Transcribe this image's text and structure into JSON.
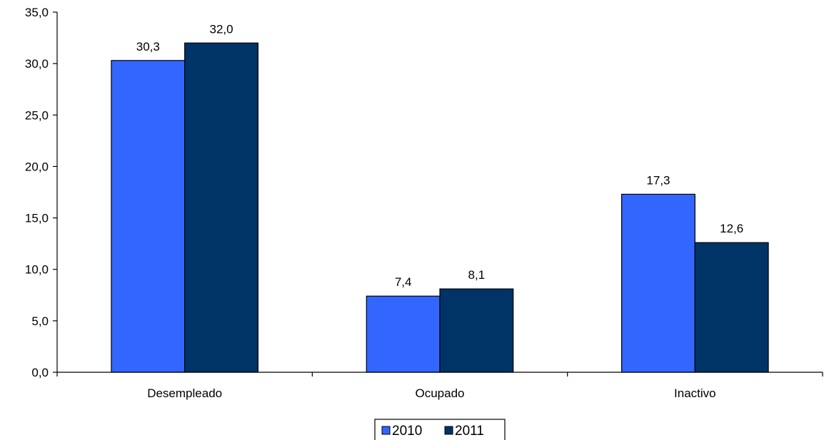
{
  "chart_data": {
    "type": "bar",
    "title": "",
    "xlabel": "",
    "ylabel": "",
    "categories": [
      "Desempleado",
      "Ocupado",
      "Inactivo"
    ],
    "series": [
      {
        "name": "2010",
        "color": "#3366FF",
        "values": [
          30.3,
          7.4,
          17.3
        ],
        "labels": [
          "30,3",
          "7,4",
          "17,3"
        ]
      },
      {
        "name": "2011",
        "color": "#003366",
        "values": [
          32.0,
          8.1,
          12.6
        ],
        "labels": [
          "32,0",
          "8,1",
          "12,6"
        ]
      }
    ],
    "ylim": [
      0,
      35
    ],
    "ytick_values": [
      0,
      5,
      10,
      15,
      20,
      25,
      30,
      35
    ],
    "ytick_labels": [
      "0,0",
      "5,0",
      "10,0",
      "15,0",
      "20,0",
      "25,0",
      "30,0",
      "35,0"
    ],
    "grid": false,
    "legend": {
      "position": "bottom-center",
      "entries": [
        "2010",
        "2011"
      ]
    }
  }
}
